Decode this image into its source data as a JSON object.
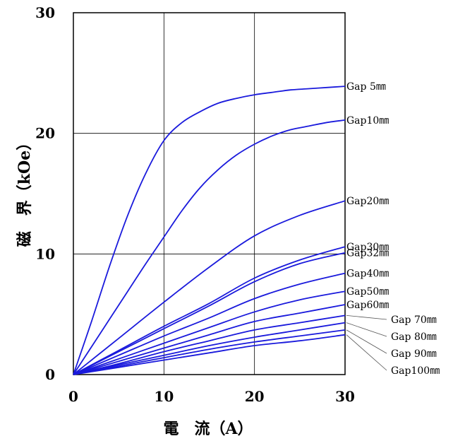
{
  "chart_data": {
    "type": "line",
    "xlabel": "電　流（A）",
    "ylabel": "磁　界（kOe）",
    "xlim": [
      0,
      30
    ],
    "ylim": [
      0,
      30
    ],
    "xticks": [
      "0",
      "10",
      "20",
      "30"
    ],
    "yticks": [
      "0",
      "10",
      "20",
      "30"
    ],
    "grid": true,
    "line_color": "#1a1adc",
    "series": [
      {
        "name": "Gap  5㎜",
        "x": [
          0,
          2,
          4,
          6,
          8,
          10,
          12,
          14,
          16,
          18,
          20,
          22,
          24,
          26,
          28,
          30
        ],
        "values": [
          0,
          4.4,
          9.0,
          13.2,
          16.7,
          19.4,
          20.9,
          21.8,
          22.5,
          22.9,
          23.2,
          23.4,
          23.6,
          23.7,
          23.8,
          23.9
        ]
      },
      {
        "name": "Gap10㎜",
        "x": [
          0,
          2,
          4,
          6,
          8,
          10,
          12,
          14,
          16,
          18,
          20,
          22,
          24,
          26,
          28,
          30
        ],
        "values": [
          0,
          2.3,
          4.6,
          6.9,
          9.2,
          11.4,
          13.6,
          15.5,
          17.0,
          18.2,
          19.1,
          19.8,
          20.3,
          20.6,
          20.9,
          21.1
        ]
      },
      {
        "name": "Gap20㎜",
        "x": [
          0,
          5,
          10,
          15,
          20,
          25,
          30
        ],
        "values": [
          0,
          3.0,
          6.0,
          8.9,
          11.5,
          13.2,
          14.4
        ]
      },
      {
        "name": "Gap30㎜",
        "x": [
          0,
          5,
          10,
          15,
          20,
          25,
          30
        ],
        "values": [
          0,
          2.0,
          4.0,
          5.9,
          8.0,
          9.5,
          10.6
        ]
      },
      {
        "name": "Gap32㎜",
        "x": [
          0,
          5,
          10,
          15,
          20,
          25,
          30
        ],
        "values": [
          0,
          1.9,
          3.8,
          5.7,
          7.7,
          9.2,
          10.1
        ]
      },
      {
        "name": "Gap40㎜",
        "x": [
          0,
          5,
          10,
          15,
          20,
          25,
          30
        ],
        "values": [
          0,
          1.6,
          3.2,
          4.7,
          6.3,
          7.5,
          8.4
        ]
      },
      {
        "name": "Gap50㎜",
        "x": [
          0,
          5,
          10,
          15,
          20,
          25,
          30
        ],
        "values": [
          0,
          1.3,
          2.6,
          3.9,
          5.2,
          6.2,
          6.9
        ]
      },
      {
        "name": "Gap60㎜",
        "x": [
          0,
          5,
          10,
          15,
          20,
          25,
          30
        ],
        "values": [
          0,
          1.1,
          2.2,
          3.3,
          4.4,
          5.1,
          5.8
        ]
      },
      {
        "name": "Gap 70㎜",
        "x": [
          0,
          5,
          10,
          15,
          20,
          25,
          30
        ],
        "values": [
          0,
          0.9,
          1.9,
          2.8,
          3.7,
          4.3,
          4.9
        ]
      },
      {
        "name": "Gap 80㎜",
        "x": [
          0,
          5,
          10,
          15,
          20,
          25,
          30
        ],
        "values": [
          0,
          0.8,
          1.6,
          2.4,
          3.1,
          3.7,
          4.3
        ]
      },
      {
        "name": "Gap 90㎜",
        "x": [
          0,
          5,
          10,
          15,
          20,
          25,
          30
        ],
        "values": [
          0,
          0.7,
          1.4,
          2.1,
          2.7,
          3.2,
          3.7
        ]
      },
      {
        "name": "Gap100㎜",
        "x": [
          0,
          5,
          10,
          15,
          20,
          25,
          30
        ],
        "values": [
          0,
          0.6,
          1.2,
          1.8,
          2.4,
          2.8,
          3.3
        ]
      }
    ]
  }
}
